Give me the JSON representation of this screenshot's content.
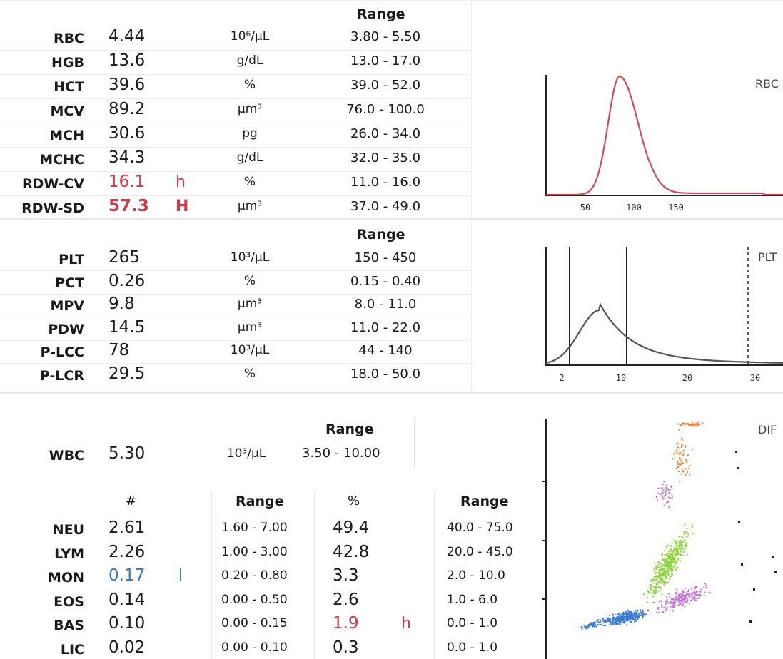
{
  "rbc_section": {
    "range_header": "Range",
    "rows": [
      {
        "name": "RBC",
        "value": "4.44",
        "flag": "",
        "unit": "10⁶/µL",
        "range": "3.80 - 5.50"
      },
      {
        "name": "HGB",
        "value": "13.6",
        "flag": "",
        "unit": "g/dL",
        "range": "13.0 - 17.0"
      },
      {
        "name": "HCT",
        "value": "39.6",
        "flag": "",
        "unit": "%",
        "range": "39.0 - 52.0"
      },
      {
        "name": "MCV",
        "value": "89.2",
        "flag": "",
        "unit": "µm³",
        "range": "76.0 - 100.0"
      },
      {
        "name": "MCH",
        "value": "30.6",
        "flag": "",
        "unit": "pg",
        "range": "26.0 - 34.0"
      },
      {
        "name": "MCHC",
        "value": "34.3",
        "flag": "",
        "unit": "g/dL",
        "range": "32.0 - 35.0"
      },
      {
        "name": "RDW-CV",
        "value": "16.1",
        "flag": "h",
        "unit": "%",
        "range": "11.0 - 16.0"
      },
      {
        "name": "RDW-SD",
        "value": "57.3",
        "flag": "H",
        "unit": "µm³",
        "range": "37.0 - 49.0"
      }
    ]
  },
  "plt_section": {
    "range_header": "Range",
    "rows": [
      {
        "name": "PLT",
        "value": "265",
        "unit": "10³/µL",
        "range": "150 - 450"
      },
      {
        "name": "PCT",
        "value": "0.26",
        "unit": "%",
        "range": "0.15 - 0.40"
      },
      {
        "name": "MPV",
        "value": "9.8",
        "unit": "µm³",
        "range": "8.0 - 11.0"
      },
      {
        "name": "PDW",
        "value": "14.5",
        "unit": "µm³",
        "range": "11.0 - 22.0"
      },
      {
        "name": "P-LCC",
        "value": "78",
        "unit": "10³/µL",
        "range": "44 - 140"
      },
      {
        "name": "P-LCR",
        "value": "29.5",
        "unit": "%",
        "range": "18.0 - 50.0"
      }
    ]
  },
  "wbc_section": {
    "name": "WBC",
    "value": "5.30",
    "unit": "10³/µL",
    "range_header": "Range",
    "range": "3.50 - 10.00",
    "headers": {
      "count": "#",
      "count_range": "Range",
      "percent": "%",
      "percent_range": "Range"
    },
    "rows": [
      {
        "name": "NEU",
        "count": "2.61",
        "count_flag": "",
        "count_range": "1.60 - 7.00",
        "percent": "49.4",
        "percent_flag": "",
        "percent_range": "40.0 - 75.0"
      },
      {
        "name": "LYM",
        "count": "2.26",
        "count_flag": "",
        "count_range": "1.00 - 3.00",
        "percent": "42.8",
        "percent_flag": "",
        "percent_range": "20.0 - 45.0"
      },
      {
        "name": "MON",
        "count": "0.17",
        "count_flag": "l",
        "count_range": "0.20 - 0.80",
        "percent": "3.3",
        "percent_flag": "",
        "percent_range": "2.0 - 10.0"
      },
      {
        "name": "EOS",
        "count": "0.14",
        "count_flag": "",
        "count_range": "0.00 - 0.50",
        "percent": "2.6",
        "percent_flag": "",
        "percent_range": "1.0 - 6.0"
      },
      {
        "name": "BAS",
        "count": "0.10",
        "count_flag": "",
        "count_range": "0.00 - 0.15",
        "percent": "1.9",
        "percent_flag": "h",
        "percent_range": "0.0 - 1.0"
      },
      {
        "name": "LIC",
        "count": "0.02",
        "count_flag": "",
        "count_range": "0.00 - 0.10",
        "percent": "0.3",
        "percent_flag": "",
        "percent_range": "0.0 - 1.0"
      }
    ]
  },
  "charts": {
    "rbc": {
      "label": "RBC",
      "ticks": [
        "50",
        "100",
        "150"
      ],
      "color": "#d04a5c"
    },
    "plt": {
      "label": "PLT",
      "ticks": [
        "2",
        "10",
        "20",
        "30"
      ],
      "color": "#555555"
    },
    "diff": {
      "label": "DIF",
      "colors": {
        "neu": "#8cd43a",
        "lym": "#3a7bd0",
        "mon": "#c070d8",
        "eos": "#e8823a"
      }
    }
  }
}
